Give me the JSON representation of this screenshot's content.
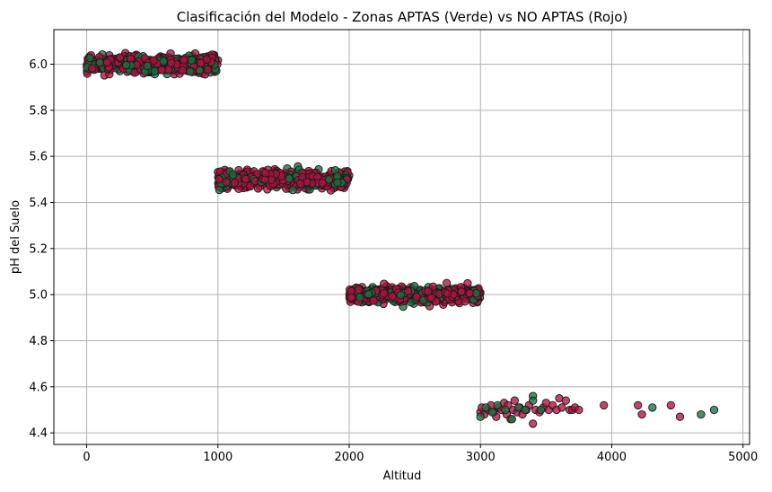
{
  "chart_data": {
    "type": "scatter",
    "title": "Clasificación del Modelo - Zonas APTAS (Verde) vs NO APTAS (Rojo)",
    "xlabel": "Altitud",
    "ylabel": "pH del Suelo",
    "xlim": [
      -250,
      5050
    ],
    "ylim": [
      4.35,
      6.15
    ],
    "x_ticks": [
      0,
      1000,
      2000,
      3000,
      4000,
      5000
    ],
    "x_tick_labels": [
      "0",
      "1000",
      "2000",
      "3000",
      "4000",
      "5000"
    ],
    "y_ticks": [
      4.4,
      4.6,
      4.8,
      5.0,
      5.2,
      5.4,
      5.6,
      5.8,
      6.0
    ],
    "y_tick_labels": [
      "4.4",
      "4.6",
      "4.8",
      "5.0",
      "5.2",
      "5.4",
      "5.6",
      "5.8",
      "6.0"
    ],
    "grid": true,
    "colors": {
      "apta": "#1a7040",
      "no_apta": "#b0123f",
      "edge": "#1a1a1a",
      "grid": "#b0b0b0"
    },
    "bands": [
      {
        "x_range": [
          0,
          1000
        ],
        "ph_center": 6.0,
        "ph_spread": 0.035
      },
      {
        "x_range": [
          1000,
          2000
        ],
        "ph_center": 5.5,
        "ph_spread": 0.035
      },
      {
        "x_range": [
          2000,
          3000
        ],
        "ph_center": 5.0,
        "ph_spread": 0.03
      }
    ],
    "series": [
      {
        "label_key": "no_apta",
        "x": [
          3000,
          3010,
          3030,
          3060,
          3080,
          3100,
          3120,
          3140,
          3160,
          3180,
          3200,
          3210,
          3230,
          3250,
          3260,
          3280,
          3300,
          3320,
          3350,
          3370,
          3400,
          3420,
          3450,
          3480,
          3500,
          3520,
          3550,
          3580,
          3600,
          3620,
          3650,
          3680,
          3700,
          3720,
          3750,
          3940,
          4200,
          4230,
          4450,
          4520
        ],
        "y": [
          4.49,
          4.51,
          4.48,
          4.5,
          4.52,
          4.49,
          4.47,
          4.51,
          4.5,
          4.53,
          4.48,
          4.52,
          4.46,
          4.5,
          4.54,
          4.49,
          4.51,
          4.48,
          4.5,
          4.52,
          4.44,
          4.5,
          4.49,
          4.51,
          4.53,
          4.5,
          4.52,
          4.5,
          4.55,
          4.51,
          4.54,
          4.5,
          4.5,
          4.51,
          4.5,
          4.52,
          4.52,
          4.48,
          4.52,
          4.47
        ]
      },
      {
        "label_key": "apta",
        "x": [
          3000,
          3040,
          3090,
          3130,
          3190,
          3240,
          3290,
          3340,
          3400,
          3400,
          3460,
          4310,
          4680,
          4780
        ],
        "y": [
          4.47,
          4.51,
          4.49,
          4.52,
          4.5,
          4.46,
          4.51,
          4.5,
          4.56,
          4.54,
          4.5,
          4.51,
          4.48,
          4.5
        ]
      }
    ]
  }
}
